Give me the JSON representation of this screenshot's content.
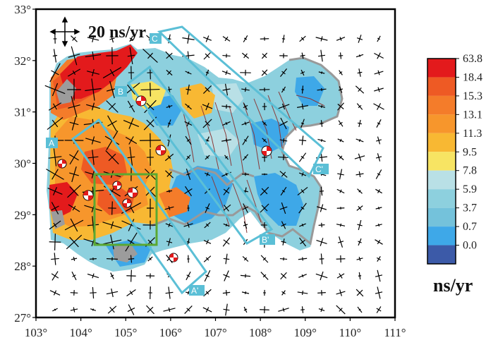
{
  "map": {
    "lon_ticks": [
      "103°",
      "104°",
      "105°",
      "106°",
      "107°",
      "108°",
      "109°",
      "110°",
      "111°"
    ],
    "lat_ticks": [
      "33°",
      "32°",
      "31°",
      "30°",
      "29°",
      "28°",
      "27°"
    ],
    "lon_range": [
      103,
      111
    ],
    "lat_range": [
      27,
      33
    ],
    "scale_label": "20 ns/yr",
    "profile_color": "#5bbfd6",
    "inset_color": "#5aa832"
  },
  "profiles": [
    {
      "start": "A",
      "end": "A'"
    },
    {
      "start": "B",
      "end": "B'"
    },
    {
      "start": "C",
      "end": "C'"
    }
  ],
  "legend": {
    "unit": "ns/yr",
    "bins": [
      {
        "label": "63.8",
        "color": "#e31a1c"
      },
      {
        "label": "18.4",
        "color": "#ee5a24"
      },
      {
        "label": "15.3",
        "color": "#f47c2a"
      },
      {
        "label": "13.1",
        "color": "#f7962c"
      },
      {
        "label": "11.3",
        "color": "#f8b833"
      },
      {
        "label": "9.5",
        "color": "#f7e463"
      },
      {
        "label": "7.8",
        "color": "#b9e0e6"
      },
      {
        "label": "5.9",
        "color": "#8dd0de"
      },
      {
        "label": "3.7",
        "color": "#74c2db"
      },
      {
        "label": "0.7",
        "color": "#3ea8e8"
      },
      {
        "label": "0.0",
        "color": "#3c5aa8"
      }
    ]
  }
}
